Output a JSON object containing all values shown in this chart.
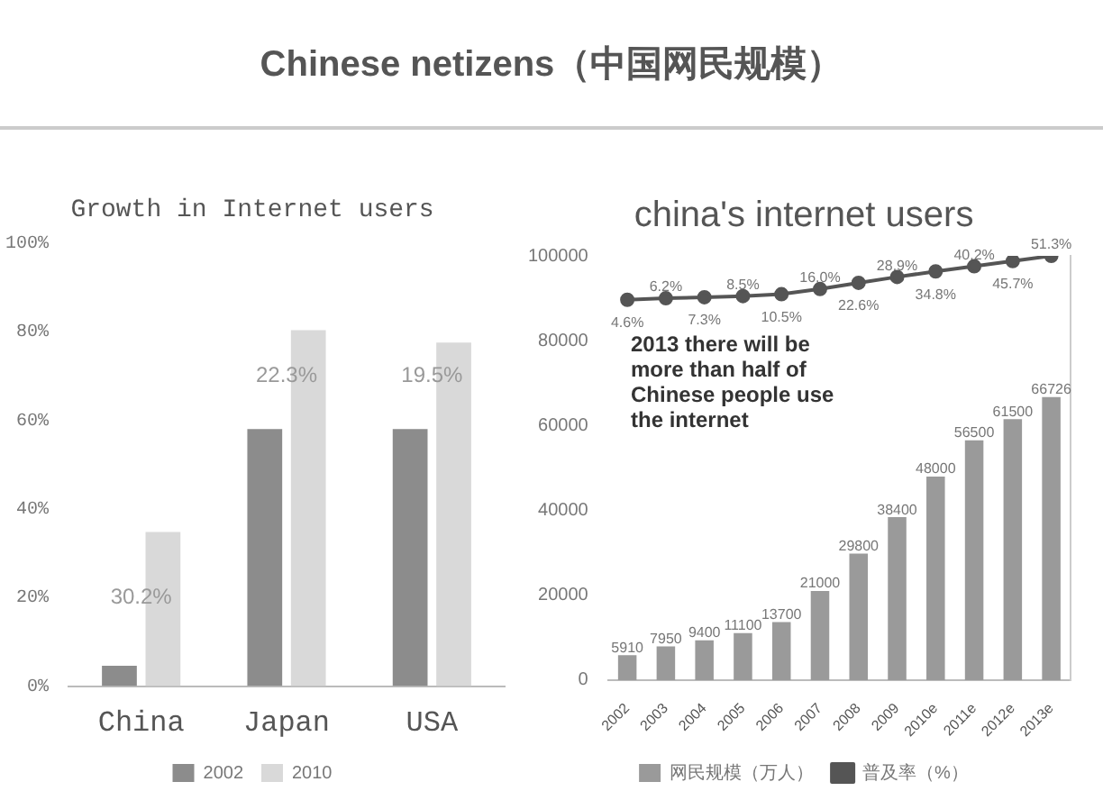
{
  "chart_data": [
    {
      "type": "bar",
      "title": "Growth in Internet users",
      "annotations": [
        "Chinese netizens（中国网民规模）",
        {
          "text": "30.2%",
          "x": "China",
          "y": 20
        },
        {
          "text": "22.3%",
          "x": "Japan",
          "y": 70
        },
        {
          "text": "19.5%",
          "x": "USA",
          "y": 70
        }
      ],
      "categories": [
        "China",
        "Japan",
        "USA"
      ],
      "series": [
        {
          "name": "2002",
          "color": "#8c8c8c",
          "values": [
            4.6,
            58,
            58
          ]
        },
        {
          "name": "2010",
          "color": "#d9d9d9",
          "values": [
            34.8,
            80.3,
            77.5
          ]
        }
      ],
      "ylim": [
        0,
        100
      ],
      "yticks": [
        {
          "value": 0,
          "label": "0%"
        },
        {
          "value": 20,
          "label": "20%"
        },
        {
          "value": 40,
          "label": "40%"
        },
        {
          "value": 60,
          "label": "60%"
        },
        {
          "value": 80,
          "label": "80%"
        },
        {
          "value": 100,
          "label": "100%"
        }
      ],
      "grid": false,
      "legend": "bottom"
    },
    {
      "type": "bar",
      "title": "china's internet users",
      "annotations": [
        "2013 there will be more than half of Chinese people use the internet"
      ],
      "categories": [
        "2002",
        "2003",
        "2004",
        "2005",
        "2006",
        "2007",
        "2008",
        "2009",
        "2010e",
        "2011e",
        "2012e",
        "2013e"
      ],
      "series": [
        {
          "name": "网民规模（万人）",
          "type": "bar",
          "color": "#9a9a9a",
          "values": [
            5910,
            7950,
            9400,
            11100,
            13700,
            21000,
            29800,
            38400,
            48000,
            56500,
            61500,
            66726
          ],
          "value_labels": [
            "5910",
            "7950",
            "9400",
            "11100",
            "13700",
            "21000",
            "29800",
            "38400",
            "48000",
            "56500",
            "61500",
            "66726"
          ]
        },
        {
          "name": "普及率（%）",
          "type": "line",
          "axis": "y2",
          "color": "#555555",
          "values": [
            4.6,
            6.2,
            7.3,
            8.5,
            10.5,
            16.0,
            22.6,
            28.9,
            34.8,
            40.2,
            45.7,
            51.3
          ],
          "value_labels": [
            "4.6%",
            "6.2%",
            "7.3%",
            "8.5%",
            "10.5%",
            "16.0%",
            "22.6%",
            "28.9%",
            "34.8%",
            "40.2%",
            "45.7%",
            "51.3%"
          ]
        }
      ],
      "ylim": [
        0,
        100000
      ],
      "yticks": [
        0,
        20000,
        40000,
        60000,
        80000,
        100000
      ],
      "y2lim": [
        -400,
        51.3
      ],
      "grid": false,
      "legend": "bottom",
      "marker": "circle",
      "line_style": "solid"
    }
  ]
}
